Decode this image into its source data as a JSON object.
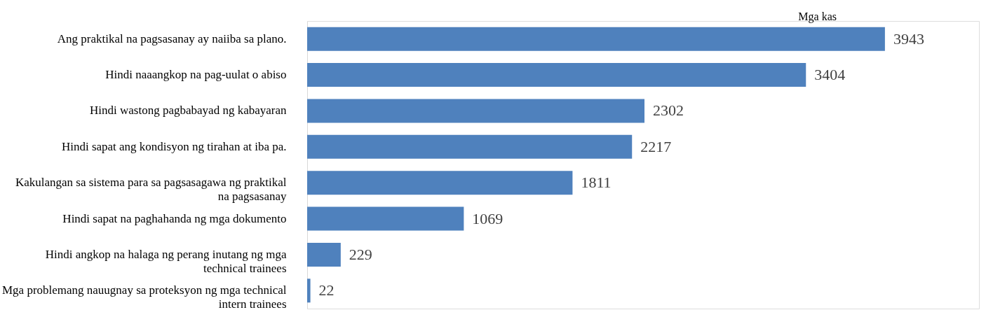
{
  "chart_data": {
    "type": "bar",
    "orientation": "horizontal",
    "data_labels": true,
    "color": "#4f81bd",
    "categories": [
      "Ang praktikal na pagsasanay ay naiiba sa plano.",
      "Hindi  naaangkop  na  pag-uulat  o  abiso",
      "Hindi wastong pagbabayad ng kabayaran",
      "Hindi sapat ang kondisyon ng tirahan at iba pa.",
      "Kakulangan sa sistema para sa pagsasagawa ng praktikal na pagsasanay",
      "Hindi sapat na paghahanda ng mga dokumento",
      "Hindi angkop na halaga ng perang inutang ng mga technical trainees",
      "Mga problemang nauugnay sa proteksyon ng mga technical intern trainees"
    ],
    "values": [
      3943,
      3404,
      2302,
      2217,
      1811,
      1069,
      229,
      22
    ],
    "annotations": [
      "Mga kas"
    ]
  }
}
